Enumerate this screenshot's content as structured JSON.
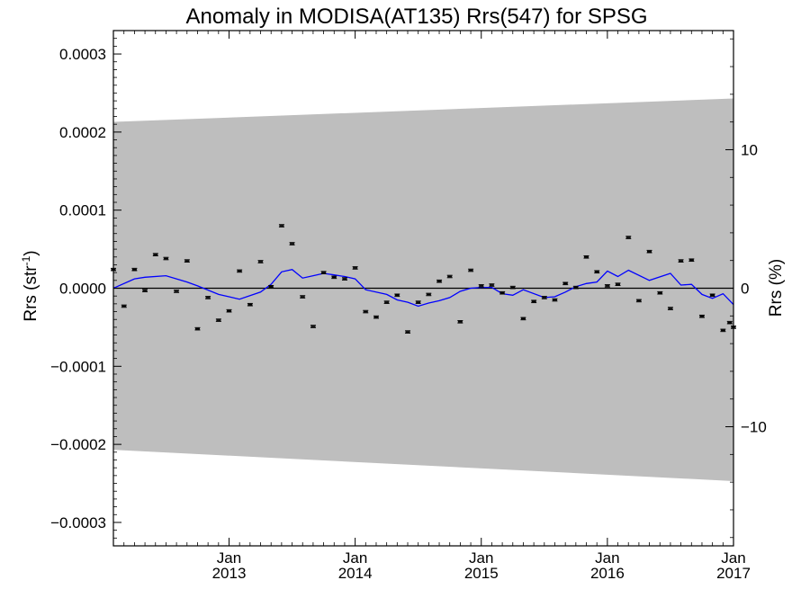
{
  "chart_data": {
    "type": "scatter",
    "title": "Anomaly in MODISA(AT135) Rrs(547) for SPSG",
    "ylabel": "Rrs (str",
    "ylabel_sup": "-1",
    "ylabel_close": ")",
    "y2label": "Rrs (%)",
    "xlim": [
      2012.083,
      2017.0
    ],
    "ylim": [
      -0.00033,
      0.00033
    ],
    "y2lim": [
      -18.6,
      18.6
    ],
    "y_ticks": [
      {
        "value": 0.0003,
        "label": "0.0003"
      },
      {
        "value": 0.0002,
        "label": "0.0002"
      },
      {
        "value": 0.0001,
        "label": "0.0001"
      },
      {
        "value": 0.0,
        "label": "0.0000"
      },
      {
        "value": -0.0001,
        "label": "−0.0001"
      },
      {
        "value": -0.0002,
        "label": "−0.0002"
      },
      {
        "value": -0.0003,
        "label": "−0.0003"
      }
    ],
    "y2_ticks": [
      {
        "value": 10,
        "label": "10"
      },
      {
        "value": 0,
        "label": "0"
      },
      {
        "value": -10,
        "label": "−10"
      }
    ],
    "x_ticks": [
      {
        "value": 2013.0,
        "month": "Jan",
        "year": "2013"
      },
      {
        "value": 2014.0,
        "month": "Jan",
        "year": "2014"
      },
      {
        "value": 2015.0,
        "month": "Jan",
        "year": "2015"
      },
      {
        "value": 2016.0,
        "month": "Jan",
        "year": "2016"
      },
      {
        "value": 2017.0,
        "month": "Jan",
        "year": "2017"
      }
    ],
    "uncertainty_band": {
      "x": [
        2012.083,
        2017.0
      ],
      "upper": [
        0.000213,
        0.000243
      ],
      "lower": [
        -0.000207,
        -0.000247
      ],
      "color": "#bebebe"
    },
    "zero_line": 0.0,
    "points": {
      "color": "#000000",
      "x": [
        2012.083,
        2012.167,
        2012.25,
        2012.333,
        2012.417,
        2012.5,
        2012.583,
        2012.667,
        2012.75,
        2012.833,
        2012.917,
        2013.0,
        2013.083,
        2013.167,
        2013.25,
        2013.333,
        2013.417,
        2013.5,
        2013.583,
        2013.667,
        2013.75,
        2013.833,
        2013.917,
        2014.0,
        2014.083,
        2014.167,
        2014.25,
        2014.333,
        2014.417,
        2014.5,
        2014.583,
        2014.667,
        2014.75,
        2014.833,
        2014.917,
        2015.0,
        2015.083,
        2015.167,
        2015.25,
        2015.333,
        2015.417,
        2015.5,
        2015.583,
        2015.667,
        2015.75,
        2015.833,
        2015.917,
        2016.0,
        2016.083,
        2016.167,
        2016.25,
        2016.333,
        2016.417,
        2016.5,
        2016.583,
        2016.667,
        2016.75,
        2016.833,
        2016.917,
        2016.97,
        2017.0
      ],
      "y": [
        2.4e-05,
        -2.3e-05,
        2.4e-05,
        -3e-06,
        4.3e-05,
        3.8e-05,
        -4e-06,
        3.5e-05,
        -5.2e-05,
        -1.2e-05,
        -4.1e-05,
        -2.9e-05,
        2.2e-05,
        -2.1e-05,
        3.4e-05,
        2e-06,
        8e-05,
        5.7e-05,
        -1.1e-05,
        -4.9e-05,
        2e-05,
        1.4e-05,
        1.2e-05,
        2.6e-05,
        -3e-05,
        -3.7e-05,
        -1.8e-05,
        -9e-06,
        -5.6e-05,
        -1.8e-05,
        -8e-06,
        9e-06,
        1.5e-05,
        -4.3e-05,
        2.3e-05,
        3e-06,
        4e-06,
        -6e-06,
        1e-06,
        -3.9e-05,
        -1.7e-05,
        -1.2e-05,
        -1.5e-05,
        6e-06,
        1e-06,
        4e-05,
        2.1e-05,
        3e-06,
        5e-06,
        6.5e-05,
        -1.6e-05,
        4.7e-05,
        -6e-06,
        -2.6e-05,
        3.5e-05,
        3.6e-05,
        -3.6e-05,
        -9e-06,
        -5.4e-05,
        -4.4e-05,
        -5e-05
      ]
    },
    "smoothed_series": {
      "color": "#0000ff",
      "x": [
        2012.083,
        2012.25,
        2012.333,
        2012.5,
        2012.667,
        2012.75,
        2012.917,
        2013.0,
        2013.083,
        2013.25,
        2013.333,
        2013.417,
        2013.5,
        2013.583,
        2013.667,
        2013.75,
        2013.833,
        2013.917,
        2014.0,
        2014.083,
        2014.25,
        2014.333,
        2014.417,
        2014.5,
        2014.583,
        2014.667,
        2014.75,
        2014.833,
        2014.917,
        2015.0,
        2015.083,
        2015.167,
        2015.25,
        2015.333,
        2015.5,
        2015.583,
        2015.667,
        2015.75,
        2015.833,
        2015.917,
        2016.0,
        2016.083,
        2016.167,
        2016.333,
        2016.5,
        2016.583,
        2016.667,
        2016.75,
        2016.833,
        2016.917,
        2017.0
      ],
      "y": [
        0.0,
        1.2e-05,
        1.4e-05,
        1.6e-05,
        8e-06,
        3e-06,
        -8e-06,
        -1.1e-05,
        -1.4e-05,
        -5e-06,
        5e-06,
        2.1e-05,
        2.4e-05,
        1.3e-05,
        1.6e-05,
        1.9e-05,
        1.7e-05,
        1.5e-05,
        1.2e-05,
        -2e-06,
        -8e-06,
        -1.5e-05,
        -1.8e-05,
        -2.3e-05,
        -1.9e-05,
        -1.6e-05,
        -1.2e-05,
        -4e-06,
        0.0,
        1e-06,
        1e-06,
        -7e-06,
        -9e-06,
        -2e-06,
        -1.2e-05,
        -1.1e-05,
        -5e-06,
        2e-06,
        6e-06,
        8e-06,
        2.2e-05,
        1.5e-05,
        2.3e-05,
        1e-05,
        1.9e-05,
        4e-06,
        5e-06,
        -8e-06,
        -1.3e-05,
        -7e-06,
        -2.1e-05
      ]
    }
  }
}
